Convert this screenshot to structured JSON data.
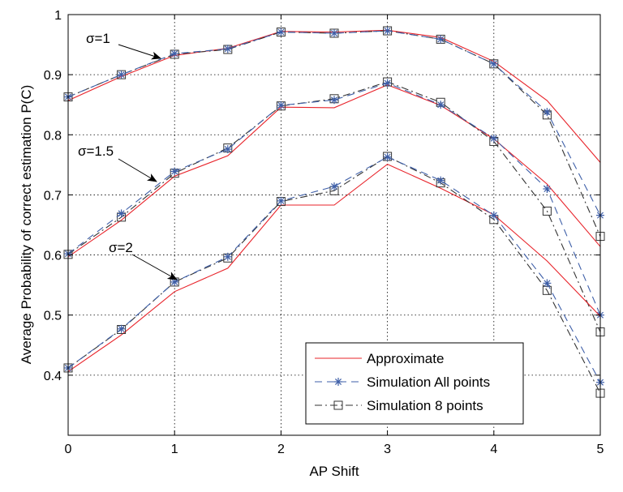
{
  "chart_data": {
    "type": "line",
    "xlabel": "AP Shift",
    "ylabel": "Average Probability of correct estimation P(C)",
    "xlim": [
      0,
      5
    ],
    "ylim": [
      0.3,
      1.0
    ],
    "xticks": [
      0,
      1,
      2,
      3,
      4,
      5
    ],
    "xtick_labels": [
      "0",
      "1",
      "2",
      "3",
      "4",
      "5"
    ],
    "yticks": [
      0.4,
      0.5,
      0.6,
      0.7,
      0.8,
      0.9,
      1.0
    ],
    "ytick_labels": [
      "0.4",
      "0.5",
      "0.6",
      "0.7",
      "0.8",
      "0.9",
      "1"
    ],
    "grid": true,
    "legend_position": "bottom-right",
    "x": [
      0,
      0.5,
      1,
      1.5,
      2,
      2.5,
      3,
      3.5,
      4,
      4.5,
      5
    ],
    "legend": [
      {
        "key": "approx",
        "label": "Approximate"
      },
      {
        "key": "simall",
        "label": "Simulation All points"
      },
      {
        "key": "sim8",
        "label": "Simulation 8 points"
      }
    ],
    "styles": {
      "approx": {
        "color": "#e8232a",
        "dash": "",
        "marker": "none"
      },
      "simall": {
        "color": "#3e5fa8",
        "dash": "9,6",
        "marker": "star"
      },
      "sim8": {
        "color": "#333333",
        "dash": "9,4,2,4",
        "marker": "square"
      }
    },
    "groups": [
      {
        "label": "σ=1",
        "approx": [
          0.857,
          0.897,
          0.932,
          0.944,
          0.972,
          0.971,
          0.974,
          0.962,
          0.922,
          0.857,
          0.754
        ],
        "simall": [
          0.863,
          0.9,
          0.935,
          0.943,
          0.971,
          0.969,
          0.973,
          0.959,
          0.918,
          0.838,
          0.666
        ],
        "sim8": [
          0.863,
          0.9,
          0.934,
          0.942,
          0.971,
          0.969,
          0.973,
          0.959,
          0.918,
          0.833,
          0.631
        ]
      },
      {
        "label": "σ=1.5",
        "approx": [
          0.597,
          0.658,
          0.731,
          0.765,
          0.846,
          0.845,
          0.883,
          0.849,
          0.793,
          0.718,
          0.614
        ],
        "simall": [
          0.602,
          0.669,
          0.739,
          0.776,
          0.849,
          0.858,
          0.886,
          0.85,
          0.794,
          0.71,
          0.5
        ],
        "sim8": [
          0.601,
          0.663,
          0.736,
          0.778,
          0.848,
          0.86,
          0.888,
          0.854,
          0.789,
          0.673,
          0.472
        ]
      },
      {
        "label": "σ=2",
        "approx": [
          0.406,
          0.467,
          0.539,
          0.578,
          0.683,
          0.683,
          0.751,
          0.711,
          0.667,
          0.59,
          0.498
        ],
        "simall": [
          0.412,
          0.477,
          0.555,
          0.597,
          0.69,
          0.714,
          0.763,
          0.724,
          0.666,
          0.553,
          0.388
        ],
        "sim8": [
          0.412,
          0.476,
          0.555,
          0.595,
          0.689,
          0.707,
          0.764,
          0.72,
          0.659,
          0.541,
          0.37
        ]
      }
    ]
  }
}
